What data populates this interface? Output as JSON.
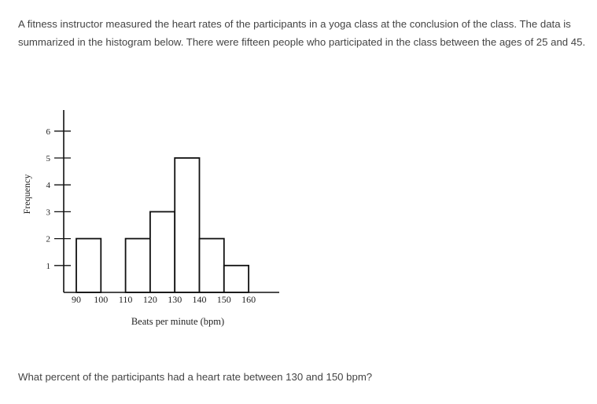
{
  "intro_text": "A fitness instructor measured the heart rates of the participants in a yoga class at the conclusion of the class. The data is summarized in the histogram below. There were fifteen people who participated in the class between the ages of 25 and 45.",
  "question_text": "What percent of the participants had a heart rate between 130 and 150 bpm?",
  "chart_data": {
    "type": "bar",
    "subtype": "histogram",
    "xlabel": "Beats per minute (bpm)",
    "ylabel": "Frequency",
    "x_ticks": [
      90,
      100,
      110,
      120,
      130,
      140,
      150,
      160
    ],
    "y_ticks": [
      1,
      2,
      3,
      4,
      5,
      6
    ],
    "xlim": [
      90,
      160
    ],
    "ylim": [
      0,
      6
    ],
    "bins": [
      {
        "start": 90,
        "end": 100,
        "value": 2
      },
      {
        "start": 100,
        "end": 110,
        "value": 0
      },
      {
        "start": 110,
        "end": 120,
        "value": 2
      },
      {
        "start": 120,
        "end": 130,
        "value": 3
      },
      {
        "start": 130,
        "end": 140,
        "value": 5
      },
      {
        "start": 140,
        "end": 150,
        "value": 2
      },
      {
        "start": 150,
        "end": 160,
        "value": 1
      }
    ],
    "grid": false,
    "bar_fill": "#ffffff",
    "bar_stroke": "#111111"
  }
}
